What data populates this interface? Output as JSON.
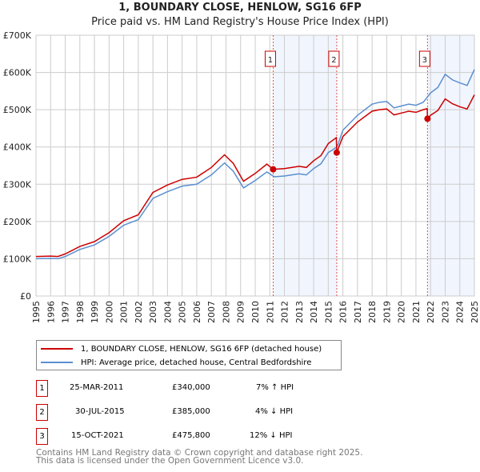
{
  "chart_data": {
    "type": "line",
    "title": "1, BOUNDARY CLOSE, HENLOW, SG16 6FP",
    "subtitle": "Price paid vs. HM Land Registry's House Price Index (HPI)",
    "xlim": [
      1995,
      2025
    ],
    "ylim": [
      0,
      700000
    ],
    "yticks": [
      {
        "v": 0,
        "label": "£0"
      },
      {
        "v": 100000,
        "label": "£100K"
      },
      {
        "v": 200000,
        "label": "£200K"
      },
      {
        "v": 300000,
        "label": "£300K"
      },
      {
        "v": 400000,
        "label": "£400K"
      },
      {
        "v": 500000,
        "label": "£500K"
      },
      {
        "v": 600000,
        "label": "£600K"
      },
      {
        "v": 700000,
        "label": "£700K"
      }
    ],
    "xticks": [
      "1995",
      "1996",
      "1997",
      "1998",
      "1999",
      "2000",
      "2001",
      "2002",
      "2003",
      "2004",
      "2005",
      "2006",
      "2007",
      "2008",
      "2009",
      "2010",
      "2011",
      "2012",
      "2013",
      "2014",
      "2015",
      "2016",
      "2017",
      "2018",
      "2019",
      "2020",
      "2021",
      "2022",
      "2023",
      "2024",
      "2025"
    ],
    "grid": true,
    "shaded_ranges": [
      [
        2011.23,
        2015.58
      ],
      [
        2021.79,
        2025
      ]
    ],
    "series": [
      {
        "name": "1, BOUNDARY CLOSE, HENLOW, SG16 6FP (detached house)",
        "color": "#cc0000",
        "points": [
          [
            1995,
            106000
          ],
          [
            1996,
            107000
          ],
          [
            1996.5,
            106000
          ],
          [
            1997,
            113000
          ],
          [
            1998,
            133000
          ],
          [
            1999,
            146000
          ],
          [
            2000,
            170000
          ],
          [
            2001,
            202000
          ],
          [
            2002,
            218000
          ],
          [
            2003,
            278000
          ],
          [
            2004,
            298000
          ],
          [
            2005,
            313000
          ],
          [
            2006,
            319000
          ],
          [
            2007,
            345000
          ],
          [
            2007.9,
            379000
          ],
          [
            2008.5,
            356000
          ],
          [
            2009.2,
            308000
          ],
          [
            2010,
            329000
          ],
          [
            2010.8,
            354000
          ],
          [
            2011.23,
            340000
          ],
          [
            2012,
            342000
          ],
          [
            2013,
            348000
          ],
          [
            2013.5,
            345000
          ],
          [
            2014,
            363000
          ],
          [
            2014.5,
            377000
          ],
          [
            2015,
            409000
          ],
          [
            2015.55,
            425000
          ],
          [
            2015.58,
            385000
          ],
          [
            2016,
            428000
          ],
          [
            2017,
            467000
          ],
          [
            2018,
            496000
          ],
          [
            2018.5,
            500000
          ],
          [
            2019,
            502000
          ],
          [
            2019.5,
            486000
          ],
          [
            2020,
            491000
          ],
          [
            2020.5,
            496000
          ],
          [
            2021,
            493000
          ],
          [
            2021.5,
            500000
          ],
          [
            2021.77,
            503000
          ],
          [
            2021.79,
            475800
          ],
          [
            2022,
            485000
          ],
          [
            2022.5,
            498000
          ],
          [
            2023,
            529000
          ],
          [
            2023.5,
            516000
          ],
          [
            2024,
            508000
          ],
          [
            2024.5,
            502000
          ],
          [
            2025,
            540000
          ]
        ]
      },
      {
        "name": "HPI: Average price, detached house, Central Bedfordshire",
        "color": "#5b8fd0",
        "points": [
          [
            1995,
            100000
          ],
          [
            1996,
            101000
          ],
          [
            1996.5,
            100000
          ],
          [
            1997,
            106000
          ],
          [
            1998,
            125000
          ],
          [
            1999,
            137000
          ],
          [
            2000,
            160000
          ],
          [
            2001,
            190000
          ],
          [
            2002,
            205000
          ],
          [
            2003,
            262000
          ],
          [
            2004,
            280000
          ],
          [
            2005,
            295000
          ],
          [
            2006,
            300000
          ],
          [
            2007,
            325000
          ],
          [
            2007.9,
            357000
          ],
          [
            2008.5,
            335000
          ],
          [
            2009.2,
            290000
          ],
          [
            2010,
            310000
          ],
          [
            2010.8,
            333000
          ],
          [
            2011.3,
            320000
          ],
          [
            2012,
            322000
          ],
          [
            2013,
            328000
          ],
          [
            2013.5,
            325000
          ],
          [
            2014,
            342000
          ],
          [
            2014.5,
            355000
          ],
          [
            2015,
            385000
          ],
          [
            2015.6,
            400000
          ],
          [
            2016,
            445000
          ],
          [
            2017,
            485000
          ],
          [
            2018,
            515000
          ],
          [
            2018.5,
            520000
          ],
          [
            2019,
            522000
          ],
          [
            2019.5,
            505000
          ],
          [
            2020,
            510000
          ],
          [
            2020.5,
            515000
          ],
          [
            2021,
            512000
          ],
          [
            2021.5,
            520000
          ],
          [
            2022,
            545000
          ],
          [
            2022.5,
            560000
          ],
          [
            2023,
            595000
          ],
          [
            2023.5,
            580000
          ],
          [
            2024,
            572000
          ],
          [
            2024.5,
            565000
          ],
          [
            2025,
            608000
          ]
        ]
      }
    ],
    "sales": [
      {
        "id": "1",
        "x": 2011.23,
        "y": 340000
      },
      {
        "id": "2",
        "x": 2015.58,
        "y": 385000
      },
      {
        "id": "3",
        "x": 2021.79,
        "y": 475800
      }
    ]
  },
  "legend": {
    "property": "1, BOUNDARY CLOSE, HENLOW, SG16 6FP (detached house)",
    "hpi": "HPI: Average price, detached house, Central Bedfordshire"
  },
  "transactions": [
    {
      "id": "1",
      "date": "25-MAR-2011",
      "price": "£340,000",
      "hpi": "7% ↑ HPI"
    },
    {
      "id": "2",
      "date": "30-JUL-2015",
      "price": "£385,000",
      "hpi": "4% ↓ HPI"
    },
    {
      "id": "3",
      "date": "15-OCT-2021",
      "price": "£475,800",
      "hpi": "12% ↓ HPI"
    }
  ],
  "footer": {
    "line1": "Contains HM Land Registry data © Crown copyright and database right 2025.",
    "line2": "This data is licensed under the Open Government Licence v3.0."
  }
}
